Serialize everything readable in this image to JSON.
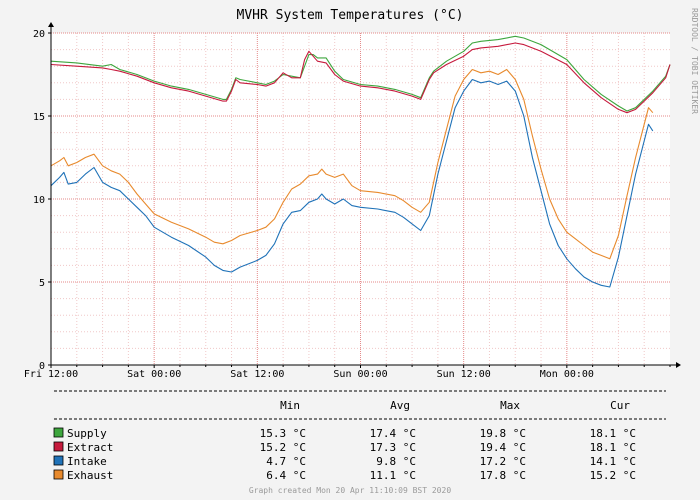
{
  "chart_data": {
    "type": "line",
    "title": "MVHR System Temperatures (°C)",
    "watermark": "RRDTOOL / TOBI OETIKER",
    "footer": "Graph created Mon 20 Apr 11:10:09 BST 2020",
    "x_tick_labels": [
      "Fri 12:00",
      "Sat 00:00",
      "Sat 12:00",
      "Sun 00:00",
      "Sun 12:00",
      "Mon 00:00"
    ],
    "x_tick_hours": [
      0,
      12,
      24,
      36,
      48,
      60
    ],
    "x_range_hours": [
      0,
      72
    ],
    "ylim": [
      0,
      20
    ],
    "y_ticks": [
      0,
      5,
      10,
      15,
      20
    ],
    "grid": true,
    "legend_headers": [
      "Min",
      "Avg",
      "Max",
      "Cur"
    ],
    "series": [
      {
        "name": "Supply",
        "color": "#3da63d",
        "stats": [
          "15.3 °C",
          "17.4 °C",
          "19.8 °C",
          "18.1 °C"
        ],
        "points": [
          [
            0,
            18.3
          ],
          [
            3,
            18.2
          ],
          [
            6,
            18.0
          ],
          [
            7,
            18.1
          ],
          [
            8,
            17.8
          ],
          [
            10,
            17.5
          ],
          [
            12,
            17.1
          ],
          [
            14,
            16.8
          ],
          [
            16,
            16.6
          ],
          [
            18,
            16.3
          ],
          [
            20,
            16.0
          ],
          [
            20.4,
            16.0
          ],
          [
            21,
            16.6
          ],
          [
            21.5,
            17.3
          ],
          [
            22,
            17.2
          ],
          [
            24,
            17.0
          ],
          [
            25,
            16.9
          ],
          [
            26,
            17.1
          ],
          [
            27,
            17.5
          ],
          [
            28,
            17.4
          ],
          [
            29,
            17.3
          ],
          [
            30,
            18.7
          ],
          [
            30.5,
            18.7
          ],
          [
            31,
            18.5
          ],
          [
            32,
            18.5
          ],
          [
            33,
            17.7
          ],
          [
            34,
            17.2
          ],
          [
            36,
            16.9
          ],
          [
            38,
            16.8
          ],
          [
            40,
            16.6
          ],
          [
            42,
            16.3
          ],
          [
            43,
            16.1
          ],
          [
            44,
            17.3
          ],
          [
            44.5,
            17.7
          ],
          [
            46,
            18.3
          ],
          [
            48,
            18.9
          ],
          [
            49,
            19.4
          ],
          [
            50,
            19.5
          ],
          [
            52,
            19.6
          ],
          [
            54,
            19.8
          ],
          [
            55,
            19.7
          ],
          [
            57,
            19.3
          ],
          [
            60,
            18.4
          ],
          [
            62,
            17.2
          ],
          [
            64,
            16.3
          ],
          [
            66,
            15.6
          ],
          [
            67,
            15.3
          ],
          [
            68,
            15.5
          ],
          [
            70,
            16.5
          ],
          [
            71.5,
            17.4
          ],
          [
            72,
            18.1
          ]
        ]
      },
      {
        "name": "Extract",
        "color": "#c61a3d",
        "stats": [
          "15.2 °C",
          "17.3 °C",
          "19.4 °C",
          "18.1 °C"
        ],
        "points": [
          [
            0,
            18.1
          ],
          [
            3,
            18.0
          ],
          [
            6,
            17.9
          ],
          [
            7,
            17.8
          ],
          [
            8,
            17.7
          ],
          [
            10,
            17.4
          ],
          [
            12,
            17.0
          ],
          [
            14,
            16.7
          ],
          [
            16,
            16.5
          ],
          [
            18,
            16.2
          ],
          [
            20,
            15.9
          ],
          [
            20.4,
            15.9
          ],
          [
            21,
            16.5
          ],
          [
            21.5,
            17.2
          ],
          [
            22,
            17.0
          ],
          [
            24,
            16.9
          ],
          [
            25,
            16.8
          ],
          [
            26,
            17.0
          ],
          [
            27,
            17.6
          ],
          [
            28,
            17.3
          ],
          [
            29,
            17.3
          ],
          [
            29.5,
            18.4
          ],
          [
            30,
            18.9
          ],
          [
            31,
            18.3
          ],
          [
            32,
            18.2
          ],
          [
            33,
            17.5
          ],
          [
            34,
            17.1
          ],
          [
            36,
            16.8
          ],
          [
            38,
            16.7
          ],
          [
            40,
            16.5
          ],
          [
            42,
            16.2
          ],
          [
            43,
            16.0
          ],
          [
            44,
            17.2
          ],
          [
            44.5,
            17.6
          ],
          [
            46,
            18.1
          ],
          [
            48,
            18.6
          ],
          [
            49,
            19.0
          ],
          [
            50,
            19.1
          ],
          [
            52,
            19.2
          ],
          [
            54,
            19.4
          ],
          [
            55,
            19.3
          ],
          [
            57,
            18.9
          ],
          [
            60,
            18.1
          ],
          [
            62,
            17.0
          ],
          [
            64,
            16.1
          ],
          [
            66,
            15.4
          ],
          [
            67,
            15.2
          ],
          [
            68,
            15.4
          ],
          [
            70,
            16.4
          ],
          [
            71.5,
            17.3
          ],
          [
            72,
            18.1
          ]
        ]
      },
      {
        "name": "Intake",
        "color": "#1f72b8",
        "stats": [
          "4.7 °C",
          "9.8 °C",
          "17.2 °C",
          "14.1 °C"
        ],
        "points": [
          [
            0,
            10.8
          ],
          [
            1,
            11.3
          ],
          [
            1.5,
            11.6
          ],
          [
            2,
            10.9
          ],
          [
            3,
            11.0
          ],
          [
            4,
            11.5
          ],
          [
            5,
            11.9
          ],
          [
            6,
            11.0
          ],
          [
            7,
            10.7
          ],
          [
            8,
            10.5
          ],
          [
            9,
            10.0
          ],
          [
            10,
            9.5
          ],
          [
            11,
            9.0
          ],
          [
            12,
            8.3
          ],
          [
            14,
            7.7
          ],
          [
            16,
            7.2
          ],
          [
            18,
            6.5
          ],
          [
            19,
            6.0
          ],
          [
            20,
            5.7
          ],
          [
            21,
            5.6
          ],
          [
            22,
            5.9
          ],
          [
            24,
            6.3
          ],
          [
            25,
            6.6
          ],
          [
            26,
            7.3
          ],
          [
            27,
            8.5
          ],
          [
            28,
            9.2
          ],
          [
            29,
            9.3
          ],
          [
            30,
            9.8
          ],
          [
            31,
            10.0
          ],
          [
            31.5,
            10.3
          ],
          [
            32,
            10.0
          ],
          [
            33,
            9.7
          ],
          [
            34,
            10.0
          ],
          [
            35,
            9.6
          ],
          [
            36,
            9.5
          ],
          [
            38,
            9.4
          ],
          [
            40,
            9.2
          ],
          [
            41,
            8.9
          ],
          [
            42,
            8.5
          ],
          [
            43,
            8.1
          ],
          [
            44,
            9.0
          ],
          [
            45,
            11.5
          ],
          [
            46,
            13.5
          ],
          [
            47,
            15.5
          ],
          [
            48,
            16.5
          ],
          [
            49,
            17.2
          ],
          [
            50,
            17.0
          ],
          [
            51,
            17.1
          ],
          [
            52,
            16.9
          ],
          [
            53,
            17.1
          ],
          [
            54,
            16.5
          ],
          [
            55,
            15.0
          ],
          [
            56,
            12.5
          ],
          [
            57,
            10.5
          ],
          [
            58,
            8.5
          ],
          [
            59,
            7.2
          ],
          [
            60,
            6.4
          ],
          [
            61,
            5.8
          ],
          [
            62,
            5.3
          ],
          [
            63,
            5.0
          ],
          [
            64,
            4.8
          ],
          [
            65,
            4.7
          ],
          [
            66,
            6.5
          ],
          [
            67,
            9.0
          ],
          [
            68,
            11.5
          ],
          [
            69,
            13.5
          ],
          [
            69.5,
            14.5
          ],
          [
            70,
            14.1
          ]
        ]
      },
      {
        "name": "Exhaust",
        "color": "#e88a2d",
        "stats": [
          "6.4 °C",
          "11.1 °C",
          "17.8 °C",
          "15.2 °C"
        ],
        "points": [
          [
            0,
            12.0
          ],
          [
            1,
            12.3
          ],
          [
            1.5,
            12.5
          ],
          [
            2,
            12.0
          ],
          [
            3,
            12.2
          ],
          [
            4,
            12.5
          ],
          [
            5,
            12.7
          ],
          [
            6,
            12.0
          ],
          [
            7,
            11.7
          ],
          [
            8,
            11.5
          ],
          [
            9,
            11.0
          ],
          [
            10,
            10.3
          ],
          [
            11,
            9.7
          ],
          [
            12,
            9.1
          ],
          [
            14,
            8.6
          ],
          [
            16,
            8.2
          ],
          [
            18,
            7.7
          ],
          [
            19,
            7.4
          ],
          [
            20,
            7.3
          ],
          [
            21,
            7.5
          ],
          [
            22,
            7.8
          ],
          [
            24,
            8.1
          ],
          [
            25,
            8.3
          ],
          [
            26,
            8.8
          ],
          [
            27,
            9.8
          ],
          [
            28,
            10.6
          ],
          [
            29,
            10.9
          ],
          [
            30,
            11.4
          ],
          [
            31,
            11.5
          ],
          [
            31.5,
            11.8
          ],
          [
            32,
            11.5
          ],
          [
            33,
            11.3
          ],
          [
            34,
            11.5
          ],
          [
            35,
            10.8
          ],
          [
            36,
            10.5
          ],
          [
            38,
            10.4
          ],
          [
            40,
            10.2
          ],
          [
            41,
            9.9
          ],
          [
            42,
            9.5
          ],
          [
            43,
            9.2
          ],
          [
            44,
            9.8
          ],
          [
            45,
            12.2
          ],
          [
            46,
            14.2
          ],
          [
            47,
            16.2
          ],
          [
            48,
            17.2
          ],
          [
            49,
            17.8
          ],
          [
            50,
            17.6
          ],
          [
            51,
            17.7
          ],
          [
            52,
            17.5
          ],
          [
            53,
            17.8
          ],
          [
            54,
            17.2
          ],
          [
            55,
            16.0
          ],
          [
            56,
            13.8
          ],
          [
            57,
            11.8
          ],
          [
            58,
            10.0
          ],
          [
            59,
            8.8
          ],
          [
            60,
            8.0
          ],
          [
            61,
            7.6
          ],
          [
            62,
            7.2
          ],
          [
            63,
            6.8
          ],
          [
            64,
            6.6
          ],
          [
            65,
            6.4
          ],
          [
            66,
            7.8
          ],
          [
            67,
            10.2
          ],
          [
            68,
            12.5
          ],
          [
            69,
            14.5
          ],
          [
            69.5,
            15.5
          ],
          [
            70,
            15.2
          ]
        ]
      }
    ]
  }
}
